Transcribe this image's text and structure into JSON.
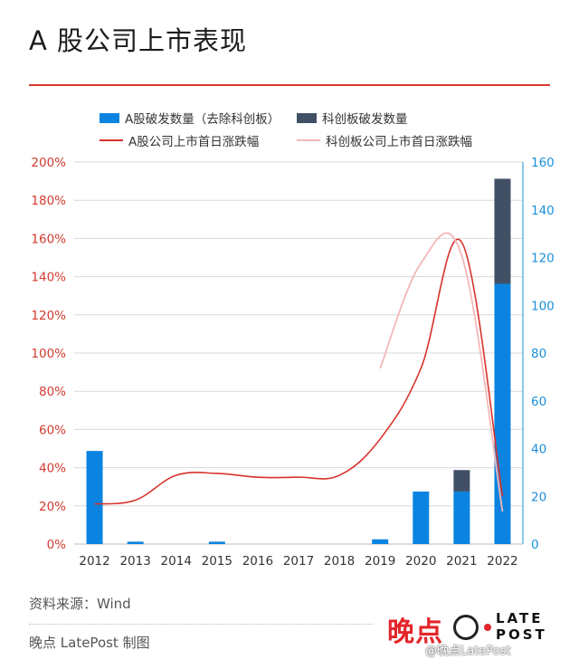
{
  "title": "A 股公司上市表现",
  "legend": {
    "a_ipo_count": "A股破发数量（去除科创板）",
    "star_ipo_count": "科创板破发数量",
    "a_first_day": "A股公司上市首日涨跌幅",
    "star_first_day": "科创板公司上市首日涨跌幅"
  },
  "footer": {
    "source": "资料来源：Wind",
    "credit": "晚点 LatePost 制图"
  },
  "logo": {
    "chinese": "晚点",
    "en_line1": "LATE",
    "en_line2": "POST",
    "watermark": "@晚点LatePost"
  },
  "colors": {
    "accent_red": "#d43a2f",
    "bar_blue": "#0a84e0",
    "bar_dark": "#425066",
    "line_red": "#d7322a",
    "line_pink": "#f4b8b8",
    "right_axis_blue": "#1a8fd8"
  },
  "chart_data": {
    "type": "bar",
    "categories": [
      "2012",
      "2013",
      "2014",
      "2015",
      "2016",
      "2017",
      "2018",
      "2019",
      "2020",
      "2021",
      "2022"
    ],
    "left_axis": {
      "ticks": [
        "0%",
        "20%",
        "40%",
        "60%",
        "80%",
        "100%",
        "120%",
        "140%",
        "160%",
        "180%",
        "200%"
      ],
      "range": [
        0,
        200
      ]
    },
    "right_axis": {
      "ticks": [
        "0",
        "20",
        "40",
        "60",
        "80",
        "100",
        "120",
        "140",
        "160"
      ],
      "range": [
        0,
        160
      ]
    },
    "bar_series": [
      {
        "name": "A股破发数量（去除科创板）",
        "axis": "right",
        "values": [
          39,
          1,
          0,
          1,
          0,
          0,
          0,
          2,
          22,
          22,
          109
        ]
      },
      {
        "name": "科创板破发数量",
        "axis": "right",
        "stacked": true,
        "values": [
          0,
          0,
          0,
          0,
          0,
          0,
          0,
          0,
          0,
          9,
          44
        ]
      }
    ],
    "line_series": [
      {
        "name": "A股公司上市首日涨跌幅",
        "axis": "left",
        "values": [
          21,
          23,
          36,
          37,
          35,
          35,
          36,
          55,
          92,
          158,
          25
        ]
      },
      {
        "name": "科创板公司上市首日涨跌幅",
        "axis": "left",
        "values": [
          null,
          null,
          null,
          null,
          null,
          null,
          null,
          92,
          147,
          151,
          17
        ]
      }
    ],
    "grid": true
  }
}
